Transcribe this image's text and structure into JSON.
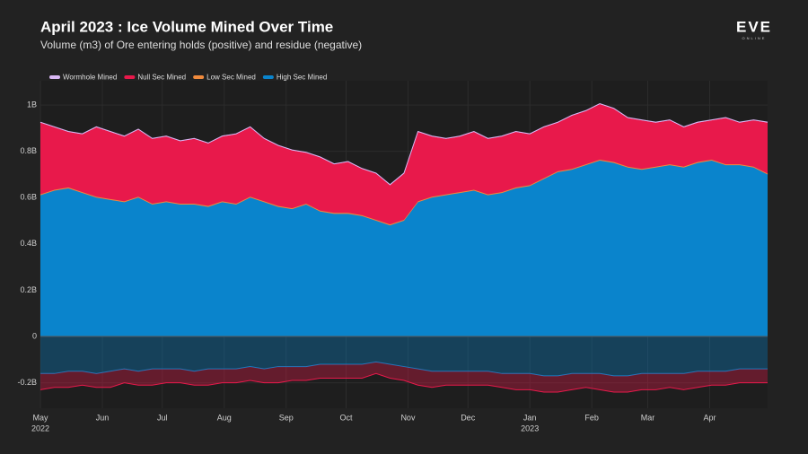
{
  "chart_data": {
    "type": "stacked-area",
    "title": "April 2023 : Ice Volume Mined Over Time",
    "subtitle": "Volume (m3) of Ore entering holds (positive) and residue (negative)",
    "logo": {
      "title": "EVE",
      "subtitle": "ONLINE"
    },
    "x": [
      0,
      7,
      14,
      21,
      28,
      35,
      42,
      49,
      56,
      63,
      70,
      77,
      84,
      91,
      98,
      105,
      112,
      119,
      126,
      133,
      140,
      147,
      154,
      161,
      168,
      175,
      182,
      189,
      196,
      203,
      210,
      217,
      224,
      231,
      238,
      245,
      252,
      259,
      266,
      273,
      280,
      287,
      294,
      301,
      308,
      315,
      322,
      329,
      336,
      343,
      350,
      357,
      364
    ],
    "xlim": [
      0,
      364
    ],
    "xticks": [
      {
        "value": 0,
        "label": "May"
      },
      {
        "value": 31,
        "label": "Jun"
      },
      {
        "value": 61,
        "label": "Jul"
      },
      {
        "value": 92,
        "label": "Aug"
      },
      {
        "value": 123,
        "label": "Sep"
      },
      {
        "value": 153,
        "label": "Oct"
      },
      {
        "value": 184,
        "label": "Nov"
      },
      {
        "value": 214,
        "label": "Dec"
      },
      {
        "value": 245,
        "label": "Jan"
      },
      {
        "value": 276,
        "label": "Feb"
      },
      {
        "value": 304,
        "label": "Mar"
      },
      {
        "value": 335,
        "label": "Apr"
      }
    ],
    "x_sublabels": [
      {
        "value": 0,
        "label": "2022"
      },
      {
        "value": 245,
        "label": "2023"
      }
    ],
    "ylim": [
      -0.31,
      1.105
    ],
    "yticks": [
      {
        "value": -0.2,
        "label": "-0.2B"
      },
      0,
      {
        "value": 0.2,
        "label": "0.2B"
      },
      {
        "value": 0.4,
        "label": "0.4B"
      },
      {
        "value": 0.6,
        "label": "0.6B"
      },
      {
        "value": 0.8,
        "label": "0.8B"
      },
      {
        "value": 1,
        "label": "1B"
      }
    ],
    "grid": true,
    "legend": "top-left",
    "series": [
      {
        "name": "Wormhole Mined",
        "color": "#d9b8f5",
        "values": [
          0.002,
          0.002,
          0.002,
          0.002,
          0.002,
          0.002,
          0.002,
          0.002,
          0.002,
          0.002,
          0.002,
          0.002,
          0.002,
          0.002,
          0.002,
          0.002,
          0.002,
          0.002,
          0.002,
          0.002,
          0.002,
          0.002,
          0.002,
          0.002,
          0.002,
          0.002,
          0.002,
          0.002,
          0.002,
          0.002,
          0.002,
          0.002,
          0.002,
          0.002,
          0.002,
          0.002,
          0.002,
          0.002,
          0.002,
          0.002,
          0.002,
          0.002,
          0.002,
          0.002,
          0.002,
          0.002,
          0.002,
          0.002,
          0.002,
          0.002,
          0.002,
          0.002,
          0.002
        ]
      },
      {
        "name": "Null Sec Mined",
        "color": "#e8194b",
        "values": [
          0.31,
          0.27,
          0.24,
          0.25,
          0.3,
          0.29,
          0.28,
          0.29,
          0.28,
          0.28,
          0.27,
          0.28,
          0.27,
          0.28,
          0.3,
          0.3,
          0.27,
          0.26,
          0.25,
          0.22,
          0.23,
          0.21,
          0.22,
          0.2,
          0.2,
          0.17,
          0.2,
          0.3,
          0.26,
          0.24,
          0.24,
          0.25,
          0.24,
          0.24,
          0.24,
          0.22,
          0.22,
          0.21,
          0.23,
          0.23,
          0.24,
          0.23,
          0.21,
          0.21,
          0.19,
          0.19,
          0.17,
          0.17,
          0.17,
          0.2,
          0.18,
          0.2,
          0.22
        ],
        "residue": [
          -0.07,
          -0.06,
          -0.07,
          -0.06,
          -0.06,
          -0.07,
          -0.06,
          -0.06,
          -0.07,
          -0.06,
          -0.06,
          -0.06,
          -0.07,
          -0.06,
          -0.06,
          -0.06,
          -0.06,
          -0.07,
          -0.06,
          -0.06,
          -0.06,
          -0.06,
          -0.06,
          -0.06,
          -0.05,
          -0.06,
          -0.06,
          -0.07,
          -0.07,
          -0.06,
          -0.06,
          -0.06,
          -0.06,
          -0.06,
          -0.07,
          -0.07,
          -0.07,
          -0.07,
          -0.07,
          -0.06,
          -0.07,
          -0.07,
          -0.07,
          -0.07,
          -0.07,
          -0.06,
          -0.07,
          -0.07,
          -0.06,
          -0.06,
          -0.06,
          -0.06,
          -0.06
        ]
      },
      {
        "name": "Low Sec Mined",
        "color": "#f08a3c",
        "values": [
          0.004,
          0.004,
          0.004,
          0.004,
          0.004,
          0.004,
          0.004,
          0.004,
          0.004,
          0.004,
          0.004,
          0.004,
          0.004,
          0.004,
          0.004,
          0.004,
          0.004,
          0.004,
          0.004,
          0.004,
          0.004,
          0.004,
          0.004,
          0.004,
          0.004,
          0.004,
          0.004,
          0.004,
          0.004,
          0.004,
          0.004,
          0.004,
          0.004,
          0.004,
          0.004,
          0.004,
          0.004,
          0.004,
          0.004,
          0.004,
          0.004,
          0.004,
          0.004,
          0.004,
          0.004,
          0.004,
          0.004,
          0.004,
          0.004,
          0.004,
          0.004,
          0.004,
          0.004
        ]
      },
      {
        "name": "High Sec Mined",
        "color": "#0a84cc",
        "values": [
          0.61,
          0.63,
          0.64,
          0.62,
          0.6,
          0.59,
          0.58,
          0.6,
          0.57,
          0.58,
          0.57,
          0.57,
          0.56,
          0.58,
          0.57,
          0.6,
          0.58,
          0.56,
          0.55,
          0.57,
          0.54,
          0.53,
          0.53,
          0.52,
          0.5,
          0.48,
          0.5,
          0.58,
          0.6,
          0.61,
          0.62,
          0.63,
          0.61,
          0.62,
          0.64,
          0.65,
          0.68,
          0.71,
          0.72,
          0.74,
          0.76,
          0.75,
          0.73,
          0.72,
          0.73,
          0.74,
          0.73,
          0.75,
          0.76,
          0.74,
          0.74,
          0.73,
          0.7
        ],
        "residue": [
          -0.16,
          -0.16,
          -0.15,
          -0.15,
          -0.16,
          -0.15,
          -0.14,
          -0.15,
          -0.14,
          -0.14,
          -0.14,
          -0.15,
          -0.14,
          -0.14,
          -0.14,
          -0.13,
          -0.14,
          -0.13,
          -0.13,
          -0.13,
          -0.12,
          -0.12,
          -0.12,
          -0.12,
          -0.11,
          -0.12,
          -0.13,
          -0.14,
          -0.15,
          -0.15,
          -0.15,
          -0.15,
          -0.15,
          -0.16,
          -0.16,
          -0.16,
          -0.17,
          -0.17,
          -0.16,
          -0.16,
          -0.16,
          -0.17,
          -0.17,
          -0.16,
          -0.16,
          -0.16,
          -0.16,
          -0.15,
          -0.15,
          -0.15,
          -0.14,
          -0.14,
          -0.14
        ]
      }
    ]
  }
}
